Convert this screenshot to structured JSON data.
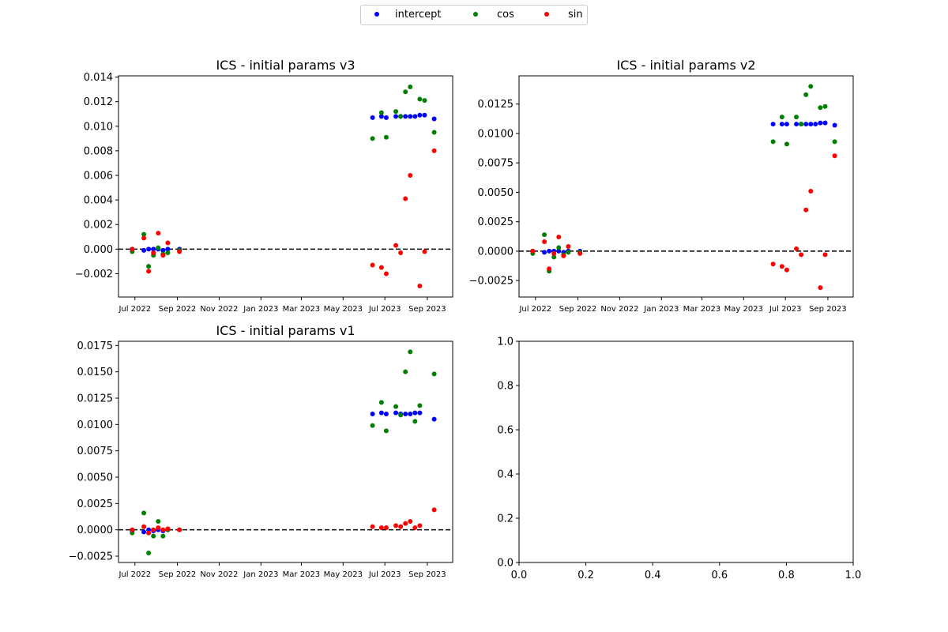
{
  "legend": {
    "entries": [
      {
        "label": "intercept",
        "color": "#0000ff"
      },
      {
        "label": "cos",
        "color": "#008000"
      },
      {
        "label": "sin",
        "color": "#ff0000"
      }
    ],
    "placement": "top-center"
  },
  "chart_data": [
    {
      "type": "scatter",
      "title": "ICS - initial params v3",
      "x_tick_labels": [
        "Jul 2022",
        "Sep 2022",
        "Nov 2022",
        "Jan 2023",
        "Mar 2023",
        "May 2023",
        "Jul 2023",
        "Sep 2023"
      ],
      "x_tick_dates": [
        "2022-07-01",
        "2022-09-01",
        "2022-11-01",
        "2023-01-01",
        "2023-03-01",
        "2023-05-01",
        "2023-07-01",
        "2023-09-01"
      ],
      "xlim": [
        "2022-06-07",
        "2023-10-08"
      ],
      "ylim": [
        -0.0039,
        0.0141
      ],
      "y_ticks": [
        -0.002,
        0.0,
        0.002,
        0.004,
        0.006,
        0.008,
        0.01,
        0.012,
        0.014
      ],
      "y_tick_labels": [
        "−0.002",
        "0.000",
        "0.002",
        "0.004",
        "0.006",
        "0.008",
        "0.010",
        "0.012",
        "0.014"
      ],
      "reference_line": {
        "y": 0,
        "style": "dashed",
        "color": "#000000"
      },
      "series": [
        {
          "name": "intercept",
          "color": "#0000ff",
          "points": [
            [
              "2022-06-27",
              0.0
            ],
            [
              "2022-07-14",
              -0.0001
            ],
            [
              "2022-07-21",
              0.0
            ],
            [
              "2022-07-28",
              0.0
            ],
            [
              "2022-08-04",
              0.0
            ],
            [
              "2022-08-11",
              -0.0001
            ],
            [
              "2022-08-18",
              0.0
            ],
            [
              "2022-09-04",
              0.0
            ],
            [
              "2023-06-13",
              0.0107
            ],
            [
              "2023-06-26",
              0.0108
            ],
            [
              "2023-07-03",
              0.0107
            ],
            [
              "2023-07-17",
              0.0108
            ],
            [
              "2023-07-24",
              0.0108
            ],
            [
              "2023-07-31",
              0.0108
            ],
            [
              "2023-08-07",
              0.0108
            ],
            [
              "2023-08-14",
              0.0108
            ],
            [
              "2023-08-21",
              0.0109
            ],
            [
              "2023-08-28",
              0.0109
            ],
            [
              "2023-09-11",
              0.0106
            ]
          ]
        },
        {
          "name": "cos",
          "color": "#008000",
          "points": [
            [
              "2022-06-27",
              -0.0002
            ],
            [
              "2022-07-14",
              0.0012
            ],
            [
              "2022-07-21",
              -0.0014
            ],
            [
              "2022-07-28",
              -0.0005
            ],
            [
              "2022-08-04",
              0.0001
            ],
            [
              "2022-08-11",
              -0.0004
            ],
            [
              "2022-08-18",
              -0.0003
            ],
            [
              "2022-09-04",
              -0.0001
            ],
            [
              "2023-06-13",
              0.009
            ],
            [
              "2023-06-26",
              0.0111
            ],
            [
              "2023-07-03",
              0.0091
            ],
            [
              "2023-07-17",
              0.0112
            ],
            [
              "2023-07-24",
              0.0108
            ],
            [
              "2023-07-31",
              0.0128
            ],
            [
              "2023-08-07",
              0.0132
            ],
            [
              "2023-08-21",
              0.0122
            ],
            [
              "2023-08-28",
              0.0121
            ],
            [
              "2023-09-11",
              0.0095
            ]
          ]
        },
        {
          "name": "sin",
          "color": "#ff0000",
          "points": [
            [
              "2022-06-27",
              0.0
            ],
            [
              "2022-07-14",
              0.0009
            ],
            [
              "2022-07-21",
              -0.0018
            ],
            [
              "2022-07-28",
              -0.0003
            ],
            [
              "2022-08-04",
              0.0013
            ],
            [
              "2022-08-11",
              -0.0005
            ],
            [
              "2022-08-18",
              0.0005
            ],
            [
              "2022-09-04",
              -0.0002
            ],
            [
              "2023-06-13",
              -0.0013
            ],
            [
              "2023-06-26",
              -0.0015
            ],
            [
              "2023-07-03",
              -0.002
            ],
            [
              "2023-07-17",
              0.0003
            ],
            [
              "2023-07-24",
              -0.0003
            ],
            [
              "2023-07-31",
              0.0041
            ],
            [
              "2023-08-07",
              0.006
            ],
            [
              "2023-08-21",
              -0.003
            ],
            [
              "2023-08-28",
              -0.0002
            ],
            [
              "2023-09-11",
              0.008
            ]
          ]
        }
      ]
    },
    {
      "type": "scatter",
      "title": "ICS - initial params v2",
      "x_tick_labels": [
        "Jul 2022",
        "Sep 2022",
        "Nov 2022",
        "Jan 2023",
        "Mar 2023",
        "May 2023",
        "Jul 2023",
        "Sep 2023"
      ],
      "x_tick_dates": [
        "2022-07-01",
        "2022-09-01",
        "2022-11-01",
        "2023-01-01",
        "2023-03-01",
        "2023-05-01",
        "2023-07-01",
        "2023-09-01"
      ],
      "xlim": [
        "2022-06-07",
        "2023-10-08"
      ],
      "ylim": [
        -0.0039,
        0.0149
      ],
      "y_ticks": [
        -0.0025,
        0.0,
        0.0025,
        0.005,
        0.0075,
        0.01,
        0.0125
      ],
      "y_tick_labels": [
        "−0.0025",
        "0.0000",
        "0.0025",
        "0.0050",
        "0.0075",
        "0.0100",
        "0.0125"
      ],
      "reference_line": {
        "y": 0,
        "style": "dashed",
        "color": "#000000"
      },
      "series": [
        {
          "name": "intercept",
          "color": "#0000ff",
          "points": [
            [
              "2022-06-27",
              0.0
            ],
            [
              "2022-07-14",
              -0.0001
            ],
            [
              "2022-07-21",
              0.0
            ],
            [
              "2022-07-28",
              0.0
            ],
            [
              "2022-08-04",
              0.0
            ],
            [
              "2022-08-11",
              -0.0001
            ],
            [
              "2022-08-18",
              0.0
            ],
            [
              "2022-09-04",
              0.0
            ],
            [
              "2023-06-13",
              0.0108
            ],
            [
              "2023-06-26",
              0.0108
            ],
            [
              "2023-07-03",
              0.0108
            ],
            [
              "2023-07-17",
              0.0108
            ],
            [
              "2023-07-24",
              0.0108
            ],
            [
              "2023-07-31",
              0.0108
            ],
            [
              "2023-08-07",
              0.0108
            ],
            [
              "2023-08-14",
              0.0108
            ],
            [
              "2023-08-21",
              0.0109
            ],
            [
              "2023-08-28",
              0.0109
            ],
            [
              "2023-09-11",
              0.0107
            ]
          ]
        },
        {
          "name": "cos",
          "color": "#008000",
          "points": [
            [
              "2022-06-27",
              -0.0002
            ],
            [
              "2022-07-14",
              0.0014
            ],
            [
              "2022-07-21",
              -0.0017
            ],
            [
              "2022-07-28",
              -0.0005
            ],
            [
              "2022-08-04",
              0.0003
            ],
            [
              "2022-08-11",
              -0.0003
            ],
            [
              "2022-08-18",
              -0.0001
            ],
            [
              "2022-09-04",
              -0.0001
            ],
            [
              "2023-06-13",
              0.0093
            ],
            [
              "2023-06-26",
              0.0114
            ],
            [
              "2023-07-03",
              0.0091
            ],
            [
              "2023-07-17",
              0.0114
            ],
            [
              "2023-07-24",
              0.0108
            ],
            [
              "2023-07-31",
              0.0133
            ],
            [
              "2023-08-07",
              0.014
            ],
            [
              "2023-08-21",
              0.0122
            ],
            [
              "2023-08-28",
              0.0123
            ],
            [
              "2023-09-11",
              0.0093
            ]
          ]
        },
        {
          "name": "sin",
          "color": "#ff0000",
          "points": [
            [
              "2022-06-27",
              0.0
            ],
            [
              "2022-07-14",
              0.0008
            ],
            [
              "2022-07-21",
              -0.0015
            ],
            [
              "2022-07-28",
              -0.0002
            ],
            [
              "2022-08-04",
              0.0012
            ],
            [
              "2022-08-11",
              -0.0004
            ],
            [
              "2022-08-18",
              0.0004
            ],
            [
              "2022-09-04",
              -0.0002
            ],
            [
              "2023-06-13",
              -0.0011
            ],
            [
              "2023-06-26",
              -0.0013
            ],
            [
              "2023-07-03",
              -0.0016
            ],
            [
              "2023-07-17",
              0.0002
            ],
            [
              "2023-07-24",
              -0.0003
            ],
            [
              "2023-07-31",
              0.0035
            ],
            [
              "2023-08-07",
              0.0051
            ],
            [
              "2023-08-21",
              -0.0031
            ],
            [
              "2023-08-28",
              -0.0003
            ],
            [
              "2023-09-11",
              0.0081
            ]
          ]
        }
      ]
    },
    {
      "type": "scatter",
      "title": "ICS - initial params v1",
      "x_tick_labels": [
        "Jul 2022",
        "Sep 2022",
        "Nov 2022",
        "Jan 2023",
        "Mar 2023",
        "May 2023",
        "Jul 2023",
        "Sep 2023"
      ],
      "x_tick_dates": [
        "2022-07-01",
        "2022-09-01",
        "2022-11-01",
        "2023-01-01",
        "2023-03-01",
        "2023-05-01",
        "2023-07-01",
        "2023-09-01"
      ],
      "xlim": [
        "2022-06-07",
        "2023-10-08"
      ],
      "ylim": [
        -0.0031,
        0.0179
      ],
      "y_ticks": [
        -0.0025,
        0.0,
        0.0025,
        0.005,
        0.0075,
        0.01,
        0.0125,
        0.015,
        0.0175
      ],
      "y_tick_labels": [
        "−0.0025",
        "0.0000",
        "0.0025",
        "0.0050",
        "0.0075",
        "0.0100",
        "0.0125",
        "0.0150",
        "0.0175"
      ],
      "reference_line": {
        "y": 0,
        "style": "dashed",
        "color": "#000000"
      },
      "series": [
        {
          "name": "intercept",
          "color": "#0000ff",
          "points": [
            [
              "2022-06-27",
              -0.0001
            ],
            [
              "2022-07-14",
              -0.0002
            ],
            [
              "2022-07-21",
              0.0
            ],
            [
              "2022-07-28",
              -0.0001
            ],
            [
              "2022-08-04",
              0.0
            ],
            [
              "2022-08-11",
              -0.0001
            ],
            [
              "2022-08-18",
              0.0
            ],
            [
              "2022-09-04",
              0.0
            ],
            [
              "2023-06-13",
              0.011
            ],
            [
              "2023-06-26",
              0.0111
            ],
            [
              "2023-07-03",
              0.011
            ],
            [
              "2023-07-17",
              0.0111
            ],
            [
              "2023-07-24",
              0.011
            ],
            [
              "2023-07-31",
              0.011
            ],
            [
              "2023-08-07",
              0.011
            ],
            [
              "2023-08-14",
              0.0111
            ],
            [
              "2023-08-21",
              0.0111
            ],
            [
              "2023-09-11",
              0.0105
            ]
          ]
        },
        {
          "name": "cos",
          "color": "#008000",
          "points": [
            [
              "2022-06-27",
              -0.0003
            ],
            [
              "2022-07-14",
              0.0016
            ],
            [
              "2022-07-21",
              -0.0022
            ],
            [
              "2022-07-28",
              -0.0006
            ],
            [
              "2022-08-04",
              0.0008
            ],
            [
              "2022-08-11",
              -0.0006
            ],
            [
              "2022-08-18",
              0.0
            ],
            [
              "2023-06-13",
              0.0099
            ],
            [
              "2023-06-26",
              0.0121
            ],
            [
              "2023-07-03",
              0.0094
            ],
            [
              "2023-07-17",
              0.0117
            ],
            [
              "2023-07-24",
              0.0109
            ],
            [
              "2023-07-31",
              0.015
            ],
            [
              "2023-08-07",
              0.0169
            ],
            [
              "2023-08-14",
              0.0103
            ],
            [
              "2023-08-21",
              0.0118
            ],
            [
              "2023-09-11",
              0.0148
            ]
          ]
        },
        {
          "name": "sin",
          "color": "#ff0000",
          "points": [
            [
              "2022-06-27",
              0.0
            ],
            [
              "2022-07-14",
              0.0003
            ],
            [
              "2022-07-21",
              -0.0003
            ],
            [
              "2022-07-28",
              0.0
            ],
            [
              "2022-08-04",
              0.0002
            ],
            [
              "2022-08-11",
              0.0
            ],
            [
              "2022-08-18",
              0.0001
            ],
            [
              "2022-09-04",
              0.0
            ],
            [
              "2023-06-13",
              0.0003
            ],
            [
              "2023-06-26",
              0.0002
            ],
            [
              "2023-07-03",
              0.0002
            ],
            [
              "2023-07-17",
              0.0004
            ],
            [
              "2023-07-24",
              0.0003
            ],
            [
              "2023-07-31",
              0.0006
            ],
            [
              "2023-08-07",
              0.0008
            ],
            [
              "2023-08-14",
              0.0002
            ],
            [
              "2023-08-21",
              0.0004
            ],
            [
              "2023-09-11",
              0.0019
            ]
          ]
        }
      ]
    },
    {
      "type": "scatter",
      "title": "",
      "xlim": [
        0.0,
        1.0
      ],
      "ylim": [
        0.0,
        1.0
      ],
      "x_ticks": [
        0.0,
        0.2,
        0.4,
        0.6,
        0.8,
        1.0
      ],
      "x_tick_labels": [
        "0.0",
        "0.2",
        "0.4",
        "0.6",
        "0.8",
        "1.0"
      ],
      "y_ticks": [
        0.0,
        0.2,
        0.4,
        0.6,
        0.8,
        1.0
      ],
      "y_tick_labels": [
        "0.0",
        "0.2",
        "0.4",
        "0.6",
        "0.8",
        "1.0"
      ],
      "series": []
    }
  ]
}
